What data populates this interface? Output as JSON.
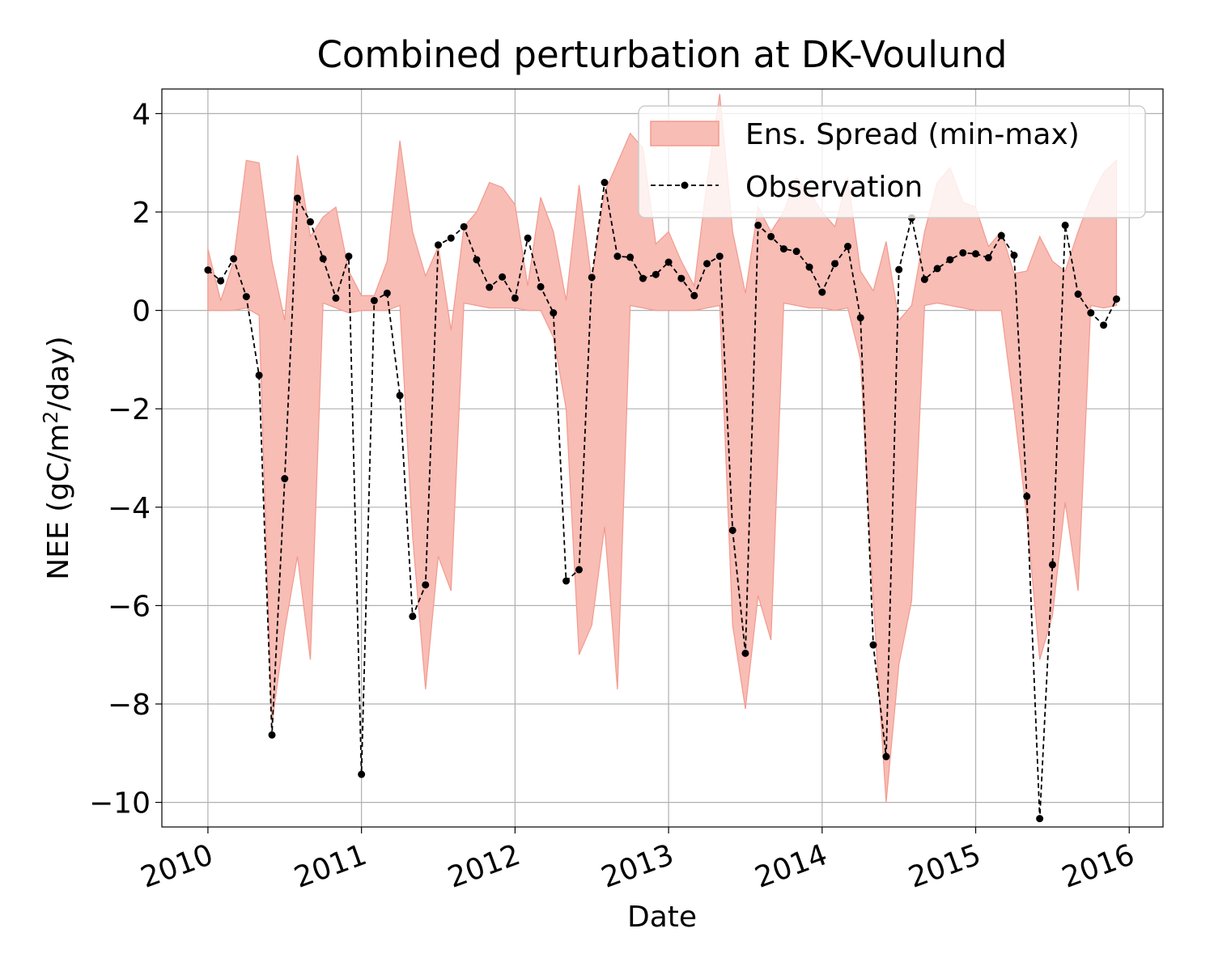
{
  "chart_data": {
    "type": "line",
    "title": "Combined perturbation at DK-Voulund",
    "xlabel": "Date",
    "ylabel_main": "NEE  (gC/m",
    "ylabel_sup": "2",
    "ylabel_tail": "/day)",
    "xlim": [
      2009.7,
      2016.22
    ],
    "ylim": [
      -10.5,
      4.5
    ],
    "x_ticks": [
      2010,
      2011,
      2012,
      2013,
      2014,
      2015,
      2016
    ],
    "x_tick_labels": [
      "2010",
      "2011",
      "2012",
      "2013",
      "2014",
      "2015",
      "2016"
    ],
    "y_ticks": [
      -10,
      -8,
      -6,
      -4,
      -2,
      0,
      2,
      4
    ],
    "y_tick_labels": [
      "−10",
      "−8",
      "−6",
      "−4",
      "−2",
      "0",
      "2",
      "4"
    ],
    "grid": true,
    "legend_position": "top-right",
    "colors": {
      "spread_fill": "#f8bdb5",
      "spread_edge": "#f29a8e",
      "observation": "#000000",
      "grid": "#b0b0b0"
    },
    "series": [
      {
        "name": "Ens. Spread (min-max)",
        "kind": "band",
        "x": [
          2010.0,
          2010.083,
          2010.167,
          2010.25,
          2010.333,
          2010.417,
          2010.5,
          2010.583,
          2010.667,
          2010.75,
          2010.833,
          2010.917,
          2011.0,
          2011.083,
          2011.167,
          2011.25,
          2011.333,
          2011.417,
          2011.5,
          2011.583,
          2011.667,
          2011.75,
          2011.833,
          2011.917,
          2012.0,
          2012.083,
          2012.167,
          2012.25,
          2012.333,
          2012.417,
          2012.5,
          2012.583,
          2012.667,
          2012.75,
          2012.833,
          2012.917,
          2013.0,
          2013.083,
          2013.167,
          2013.25,
          2013.333,
          2013.417,
          2013.5,
          2013.583,
          2013.667,
          2013.75,
          2013.833,
          2013.917,
          2014.0,
          2014.083,
          2014.167,
          2014.25,
          2014.333,
          2014.417,
          2014.5,
          2014.583,
          2014.667,
          2014.75,
          2014.833,
          2014.917,
          2015.0,
          2015.083,
          2015.167,
          2015.25,
          2015.333,
          2015.417,
          2015.5,
          2015.583,
          2015.667,
          2015.75,
          2015.833,
          2015.917
        ],
        "upper": [
          1.25,
          0.2,
          1.0,
          3.05,
          3.0,
          1.0,
          -0.2,
          3.15,
          1.5,
          1.9,
          2.1,
          0.8,
          0.3,
          0.3,
          1.0,
          3.45,
          1.6,
          0.7,
          1.3,
          -0.4,
          1.7,
          2.0,
          2.6,
          2.5,
          2.15,
          0.5,
          2.3,
          1.6,
          0.2,
          2.55,
          0.6,
          2.4,
          3.0,
          3.6,
          3.3,
          1.35,
          1.6,
          1.0,
          0.5,
          2.6,
          4.4,
          1.6,
          0.35,
          2.1,
          1.6,
          2.0,
          2.7,
          2.4,
          2.0,
          1.7,
          2.7,
          0.8,
          0.4,
          1.4,
          -0.2,
          0.1,
          1.6,
          2.6,
          2.9,
          2.2,
          2.1,
          1.3,
          1.6,
          0.75,
          0.8,
          1.5,
          1.0,
          0.8,
          1.6,
          2.3,
          2.8,
          3.05
        ],
        "lower": [
          0.0,
          0.0,
          0.0,
          0.05,
          -0.1,
          -8.4,
          -6.5,
          -5.0,
          -7.1,
          0.15,
          0.05,
          -0.05,
          0.0,
          0.0,
          0.0,
          0.1,
          -4.6,
          -7.7,
          -5.0,
          -5.7,
          0.15,
          0.1,
          0.05,
          0.05,
          0.05,
          0.0,
          0.0,
          -0.55,
          -2.0,
          -7.0,
          -6.4,
          -4.4,
          -7.7,
          0.1,
          0.05,
          0.0,
          0.0,
          0.0,
          0.0,
          0.05,
          0.1,
          -6.4,
          -8.1,
          -5.8,
          -6.7,
          0.15,
          0.1,
          0.05,
          0.05,
          0.0,
          0.05,
          -1.0,
          -5.9,
          -10.0,
          -7.2,
          -5.9,
          0.1,
          0.15,
          0.1,
          0.05,
          0.0,
          0.0,
          0.0,
          -2.0,
          -4.2,
          -7.1,
          -6.2,
          -3.9,
          -5.7,
          0.1,
          0.05,
          0.1
        ]
      },
      {
        "name": "Observation",
        "kind": "line",
        "x": [
          2010.0,
          2010.083,
          2010.167,
          2010.25,
          2010.333,
          2010.417,
          2010.5,
          2010.583,
          2010.667,
          2010.75,
          2010.833,
          2010.917,
          2011.0,
          2011.083,
          2011.167,
          2011.25,
          2011.333,
          2011.417,
          2011.5,
          2011.583,
          2011.667,
          2011.75,
          2011.833,
          2011.917,
          2012.0,
          2012.083,
          2012.167,
          2012.25,
          2012.333,
          2012.417,
          2012.5,
          2012.583,
          2012.667,
          2012.75,
          2012.833,
          2012.917,
          2013.0,
          2013.083,
          2013.167,
          2013.25,
          2013.333,
          2013.417,
          2013.5,
          2013.583,
          2013.667,
          2013.75,
          2013.833,
          2013.917,
          2014.0,
          2014.083,
          2014.167,
          2014.25,
          2014.333,
          2014.417,
          2014.5,
          2014.583,
          2014.667,
          2014.75,
          2014.833,
          2014.917,
          2015.0,
          2015.083,
          2015.167,
          2015.25,
          2015.333,
          2015.417,
          2015.5,
          2015.583,
          2015.667,
          2015.75,
          2015.833,
          2015.917
        ],
        "y": [
          0.82,
          0.6,
          1.05,
          0.28,
          -1.32,
          -8.63,
          -3.42,
          2.28,
          1.8,
          1.05,
          0.25,
          1.1,
          -9.43,
          0.2,
          0.35,
          -1.73,
          -6.22,
          -5.58,
          1.33,
          1.47,
          1.7,
          1.03,
          0.47,
          0.68,
          0.25,
          1.47,
          0.48,
          -0.05,
          -5.5,
          -5.27,
          0.67,
          2.6,
          1.1,
          1.08,
          0.65,
          0.73,
          0.98,
          0.65,
          0.3,
          0.95,
          1.1,
          -4.47,
          -6.97,
          1.73,
          1.5,
          1.25,
          1.2,
          0.88,
          0.37,
          0.95,
          1.3,
          -0.15,
          -6.8,
          -9.07,
          0.83,
          1.88,
          0.63,
          0.85,
          1.03,
          1.17,
          1.15,
          1.07,
          1.52,
          1.12,
          -3.78,
          -10.33,
          -5.17,
          1.73,
          0.33,
          -0.05,
          -0.3,
          0.23
        ]
      }
    ]
  }
}
